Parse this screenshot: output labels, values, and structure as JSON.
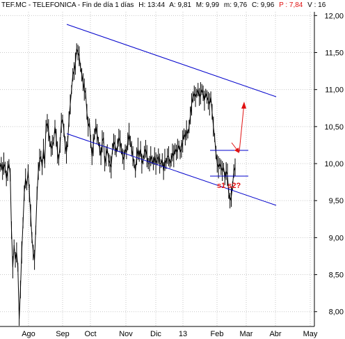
{
  "header": {
    "symbol": "TEF.MC - TELEFONICA - Fin de día 1 días",
    "high": "H: 13:44",
    "ask": "A: 9,81",
    "max": "M: 9,99",
    "min": "m: 9,76",
    "close": "C: 9,96",
    "p": "P : 7,84",
    "change": "V : 16"
  },
  "colors": {
    "price": "#000000",
    "channel": "#0000cc",
    "support": "#0000cc",
    "arrow": "#e01010",
    "annotation": "#e01010",
    "grid": "#c8c8c8",
    "p_value": "#e01010"
  },
  "annotations": {
    "support_label": "s1 s2?"
  },
  "chart_data": {
    "type": "line",
    "title": "",
    "xlabel": "",
    "ylabel": "",
    "x_ticks": [
      "Ago",
      "Sep",
      "Oct",
      "Nov",
      "Dic",
      "13",
      "Feb",
      "Mar",
      "Abr",
      "May"
    ],
    "y_ticks": [
      "12,00",
      "11,50",
      "11,00",
      "10,50",
      "10,00",
      "9,50",
      "9,00",
      "8,50",
      "8,00"
    ],
    "ylim": [
      7.8,
      12.05
    ],
    "grid": true,
    "y_axis_position": "right",
    "series": [
      {
        "values": [
          9.95,
          10.0,
          9.9,
          10.0,
          9.95,
          9.8,
          9.9,
          10.0,
          9.85,
          9.1,
          8.6,
          8.9,
          8.7,
          8.8,
          8.6,
          7.9,
          8.3,
          8.8,
          9.2,
          9.6,
          9.8,
          9.7,
          9.9,
          9.6,
          9.3,
          9.0,
          8.8,
          8.7,
          9.1,
          9.6,
          9.9,
          10.05,
          10.1,
          9.95,
          10.2,
          10.0,
          10.5,
          10.55,
          10.45,
          10.3,
          10.2,
          10.25,
          10.3,
          10.5,
          10.35,
          10.15,
          10.05,
          10.25,
          10.55,
          10.6,
          10.45,
          10.25,
          10.15,
          10.3,
          10.6,
          10.8,
          11.0,
          11.2,
          11.25,
          11.35,
          11.55,
          11.5,
          11.45,
          11.3,
          11.2,
          11.1,
          11.0,
          10.95,
          10.7,
          10.5,
          10.55,
          10.3,
          10.1,
          10.25,
          10.4,
          10.5,
          10.4,
          10.3,
          10.2,
          10.1,
          10.3,
          10.35,
          10.0,
          10.1,
          10.2,
          10.05,
          10.0,
          9.95,
          10.2,
          10.3,
          10.25,
          10.15,
          10.25,
          10.35,
          10.3,
          10.2,
          10.1,
          10.05,
          10.2,
          10.15,
          10.3,
          10.4,
          10.3,
          10.2,
          10.1,
          10.0,
          9.9,
          10.1,
          10.2,
          10.1,
          10.2,
          10.0,
          10.05,
          10.15,
          10.2,
          10.1,
          10.0,
          10.0,
          10.1,
          10.05,
          10.0,
          10.1,
          10.0,
          10.05,
          10.1,
          10.0,
          10.0,
          10.05,
          9.9,
          10.05,
          10.0,
          10.1,
          10.1,
          10.0,
          10.05,
          10.15,
          10.1,
          10.2,
          10.15,
          10.2,
          10.25,
          10.15,
          10.2,
          10.3,
          10.4,
          10.35,
          10.45,
          10.4,
          10.5,
          10.65,
          10.8,
          10.9,
          10.95,
          10.9,
          10.95,
          11.0,
          10.9,
          10.95,
          11.0,
          10.95,
          10.85,
          10.95,
          10.9,
          10.85,
          10.8,
          10.9,
          10.7,
          10.5,
          10.35,
          10.15,
          10.0,
          9.95,
          10.0,
          9.95,
          9.9,
          9.95,
          9.8,
          9.9,
          9.85,
          9.6,
          9.5,
          9.55,
          9.7,
          9.9,
          9.95
        ]
      }
    ]
  }
}
